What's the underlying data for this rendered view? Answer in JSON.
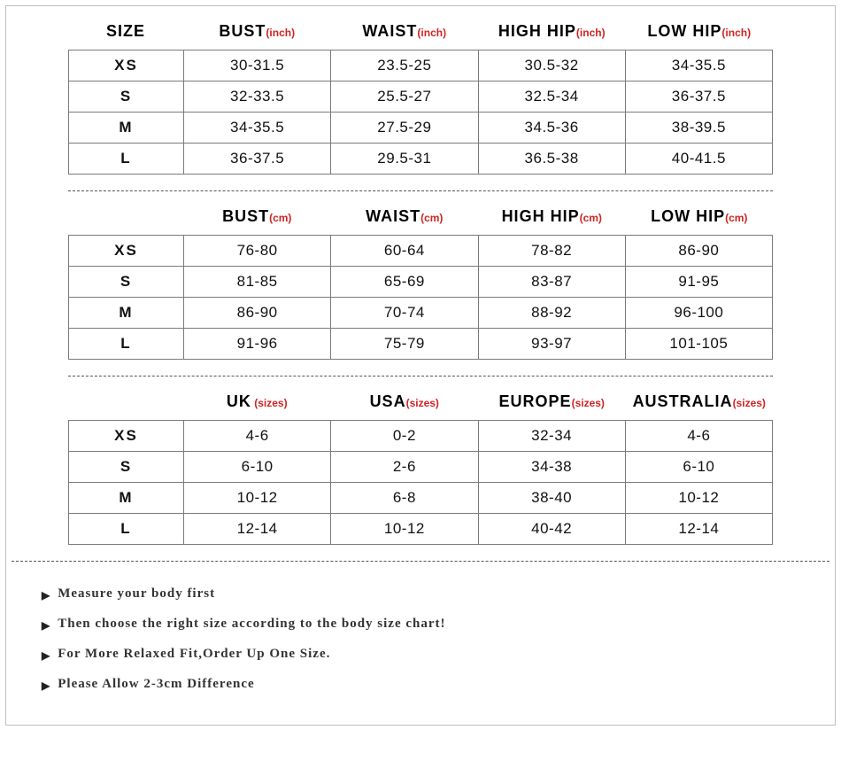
{
  "colors": {
    "border": "#bfbfbf",
    "cellBorder": "#7a7a7a",
    "unit": "#d02323",
    "text": "#111111",
    "noteText": "#333333"
  },
  "sizeLabel": "SIZE",
  "sizes": [
    "XS",
    "S",
    "M",
    "L"
  ],
  "sections": [
    {
      "showSizeHeader": true,
      "cols": [
        {
          "label": "BUST",
          "unit": "(inch)"
        },
        {
          "label": "WAIST",
          "unit": "(inch)"
        },
        {
          "label": "HIGH HIP",
          "unit": "(inch)"
        },
        {
          "label": "LOW HIP",
          "unit": "(inch)"
        }
      ],
      "rows": [
        [
          "30-31.5",
          "23.5-25",
          "30.5-32",
          "34-35.5"
        ],
        [
          "32-33.5",
          "25.5-27",
          "32.5-34",
          "36-37.5"
        ],
        [
          "34-35.5",
          "27.5-29",
          "34.5-36",
          "38-39.5"
        ],
        [
          "36-37.5",
          "29.5-31",
          "36.5-38",
          "40-41.5"
        ]
      ]
    },
    {
      "showSizeHeader": false,
      "cols": [
        {
          "label": "BUST",
          "unit": "(cm)"
        },
        {
          "label": "WAIST",
          "unit": "(cm)"
        },
        {
          "label": "HIGH HIP",
          "unit": "(cm)"
        },
        {
          "label": "LOW HIP",
          "unit": "(cm)"
        }
      ],
      "rows": [
        [
          "76-80",
          "60-64",
          "78-82",
          "86-90"
        ],
        [
          "81-85",
          "65-69",
          "83-87",
          "91-95"
        ],
        [
          "86-90",
          "70-74",
          "88-92",
          "96-100"
        ],
        [
          "91-96",
          "75-79",
          "93-97",
          "101-105"
        ]
      ]
    },
    {
      "showSizeHeader": false,
      "cols": [
        {
          "label": "UK",
          "unit": " (sizes)"
        },
        {
          "label": "USA",
          "unit": "(sizes)"
        },
        {
          "label": "EUROPE",
          "unit": "(sizes)"
        },
        {
          "label": "AUSTRALIA",
          "unit": "(sizes)"
        }
      ],
      "rows": [
        [
          "4-6",
          "0-2",
          "32-34",
          "4-6"
        ],
        [
          "6-10",
          "2-6",
          "34-38",
          "6-10"
        ],
        [
          "10-12",
          "6-8",
          "38-40",
          "10-12"
        ],
        [
          "12-14",
          "10-12",
          "40-42",
          "12-14"
        ]
      ]
    }
  ],
  "notes": [
    "Measure your body first",
    "Then choose the right size according to the body size chart!",
    "For More Relaxed Fit,Order Up One Size.",
    "Please Allow 2-3cm Difference"
  ]
}
